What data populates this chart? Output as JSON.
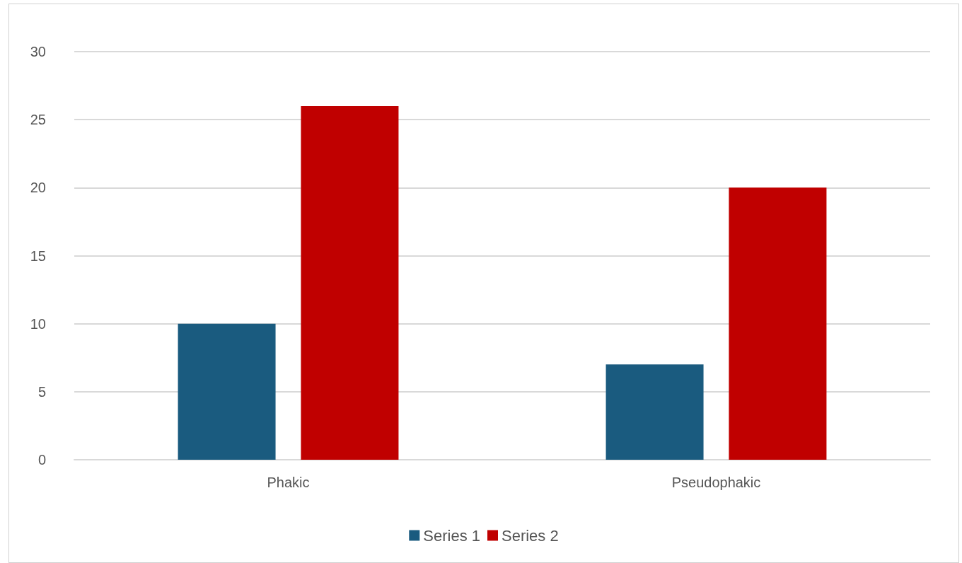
{
  "chart_data": {
    "type": "bar",
    "categories": [
      "Phakic",
      "Pseudophakic"
    ],
    "series": [
      {
        "name": "Series 1",
        "color": "#1a5b7f",
        "values": [
          10,
          7
        ]
      },
      {
        "name": "Series 2",
        "color": "#c00000",
        "values": [
          26,
          20
        ]
      }
    ],
    "ylim": [
      0,
      30
    ],
    "yticks": [
      0,
      5,
      10,
      15,
      20,
      25,
      30
    ],
    "grid": "y",
    "legend": "bottom"
  }
}
